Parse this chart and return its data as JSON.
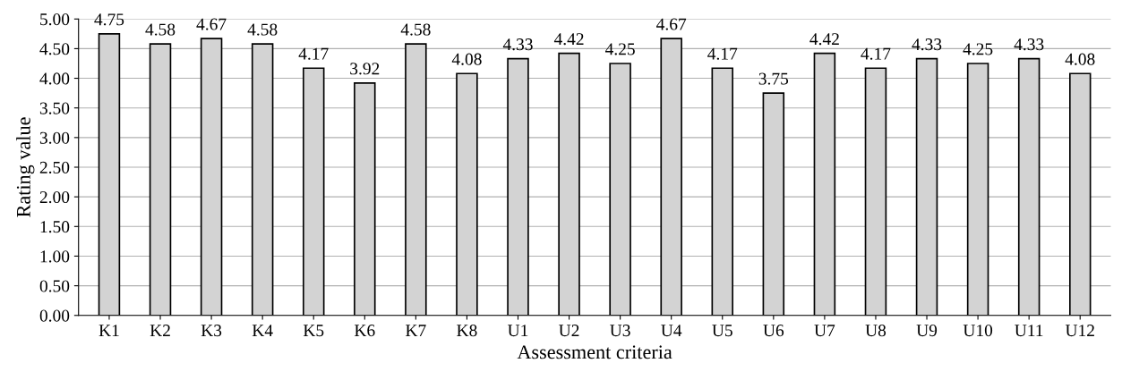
{
  "chart_data": {
    "type": "bar",
    "xlabel": "Assessment criteria",
    "ylabel": "Rating value",
    "categories": [
      "K1",
      "K2",
      "K3",
      "K4",
      "K5",
      "K6",
      "K7",
      "K8",
      "U1",
      "U2",
      "U3",
      "U4",
      "U5",
      "U6",
      "U7",
      "U8",
      "U9",
      "U10",
      "U11",
      "U12"
    ],
    "values": [
      4.75,
      4.58,
      4.67,
      4.58,
      4.17,
      3.92,
      4.58,
      4.08,
      4.33,
      4.42,
      4.25,
      4.67,
      4.17,
      3.75,
      4.42,
      4.17,
      4.33,
      4.25,
      4.33,
      4.08
    ],
    "color": "#d3d3d3",
    "ylim": [
      0,
      5
    ],
    "yticks": [
      {
        "value": 0,
        "label": "0.00"
      },
      {
        "value": 0.5,
        "label": "0.50"
      },
      {
        "value": 1,
        "label": "1.00"
      },
      {
        "value": 1.5,
        "label": "1.50"
      },
      {
        "value": 2,
        "label": "2.00"
      },
      {
        "value": 2.5,
        "label": "2.50"
      },
      {
        "value": 3,
        "label": "3.00"
      },
      {
        "value": 3.5,
        "label": "3.50"
      },
      {
        "value": 4,
        "label": "4.00"
      },
      {
        "value": 4.5,
        "label": "4.50"
      },
      {
        "value": 5,
        "label": "5.00"
      }
    ],
    "grid": "y",
    "data_labels": true
  }
}
